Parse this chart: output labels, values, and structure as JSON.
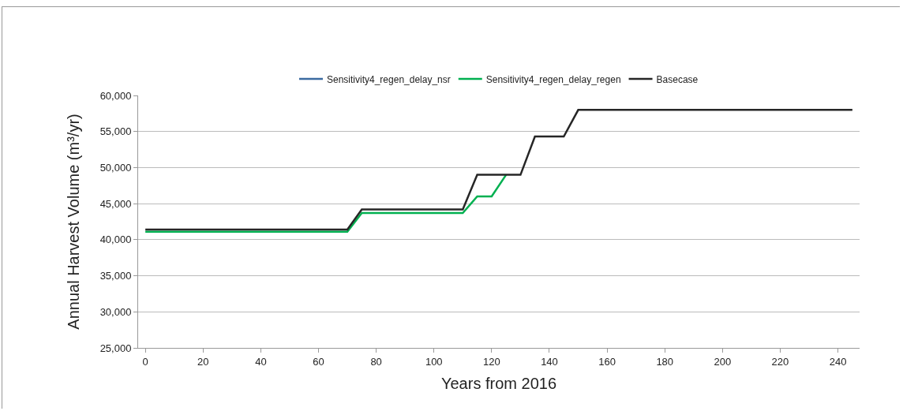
{
  "chart_data": {
    "type": "line",
    "xlabel": "Years from 2016",
    "ylabel": "Annual Harvest Volume (m³/yr)",
    "xlim": [
      -2.5,
      247.5
    ],
    "xticks": [
      0,
      20,
      40,
      60,
      80,
      100,
      120,
      140,
      160,
      180,
      200,
      220,
      240
    ],
    "ylim": [
      25000,
      60000
    ],
    "yticks": [
      {
        "value": 25000,
        "label": "25,000"
      },
      {
        "value": 30000,
        "label": "30,000"
      },
      {
        "value": 35000,
        "label": "35,000"
      },
      {
        "value": 40000,
        "label": "40,000"
      },
      {
        "value": 45000,
        "label": "45,000"
      },
      {
        "value": 50000,
        "label": "50,000"
      },
      {
        "value": 55000,
        "label": "55,000"
      },
      {
        "value": 60000,
        "label": "60,000"
      }
    ],
    "grid": "y",
    "legend": "top",
    "line_style": "solid",
    "marker": "none",
    "series": [
      {
        "name": "Sensitivity4_regen_delay_nsr",
        "color": "#3b6aa0",
        "values": [
          null
        ]
      },
      {
        "name": "Sensitivity4_regen_delay_regen",
        "color": "#00b050",
        "x": [
          0,
          70,
          75,
          110,
          115,
          120,
          125
        ],
        "values": [
          41100,
          41100,
          43700,
          43700,
          46000,
          46000,
          49000
        ]
      },
      {
        "name": "Basecase",
        "color": "#262626",
        "x": [
          0,
          70,
          75,
          110,
          115,
          130,
          135,
          145,
          150,
          245
        ],
        "values": [
          41400,
          41400,
          44200,
          44200,
          49000,
          49000,
          54300,
          54300,
          58000,
          58000
        ]
      }
    ]
  }
}
